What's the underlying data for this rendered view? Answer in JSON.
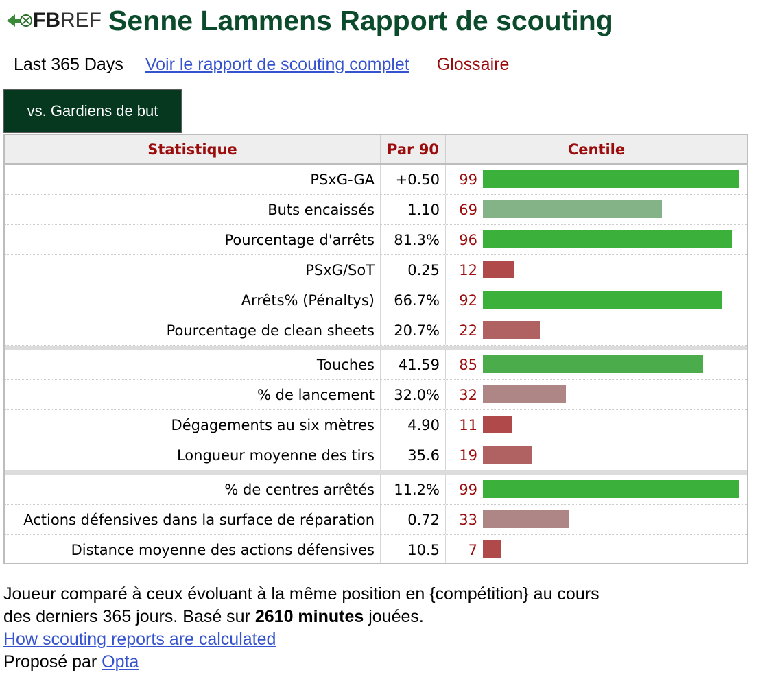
{
  "header": {
    "logo_fb": "FB",
    "logo_ref": "REF",
    "title": "Senne Lammens Rapport de scouting"
  },
  "subnav": {
    "period": "Last 365 Days",
    "full_report_link": "Voir le rapport de scouting complet",
    "glossary": "Glossaire"
  },
  "tab": {
    "label": "vs. Gardiens de but"
  },
  "table": {
    "columns": [
      "Statistique",
      "Par 90",
      "Centile"
    ],
    "groups": [
      [
        {
          "stat": "PSxG-GA",
          "per90": "+0.50",
          "percentile": 99
        },
        {
          "stat": "Buts encaissés",
          "per90": "1.10",
          "percentile": 69
        },
        {
          "stat": "Pourcentage d'arrêts",
          "per90": "81.3%",
          "percentile": 96
        },
        {
          "stat": "PSxG/SoT",
          "per90": "0.25",
          "percentile": 12
        },
        {
          "stat": "Arrêts% (Pénaltys)",
          "per90": "66.7%",
          "percentile": 92
        },
        {
          "stat": "Pourcentage de clean sheets",
          "per90": "20.7%",
          "percentile": 22
        }
      ],
      [
        {
          "stat": "Touches",
          "per90": "41.59",
          "percentile": 85
        },
        {
          "stat": "% de lancement",
          "per90": "32.0%",
          "percentile": 32
        },
        {
          "stat": "Dégagements au six mètres",
          "per90": "4.90",
          "percentile": 11
        },
        {
          "stat": "Longueur moyenne des tirs",
          "per90": "35.6",
          "percentile": 19
        }
      ],
      [
        {
          "stat": "% de centres arrêtés",
          "per90": "11.2%",
          "percentile": 99
        },
        {
          "stat": "Actions défensives dans la surface de réparation",
          "per90": "0.72",
          "percentile": 33
        },
        {
          "stat": "Distance moyenne des actions défensives",
          "per90": "10.5",
          "percentile": 7
        }
      ]
    ]
  },
  "footer": {
    "line1": "Joueur comparé à ceux évoluant à la même position en {compétition} au cours",
    "line2_before": "des derniers 365 jours. Basé sur ",
    "line2_bold": "2610 minutes",
    "line2_after": " jouées.",
    "how_link": "How scouting reports are calculated",
    "proposed_by": "Proposé par ",
    "opta_link": "Opta"
  },
  "colors": {
    "title_green": "#0b4a2a",
    "tab_bg": "#06371f",
    "header_red": "#9b0d0d",
    "link_blue": "#3553ce"
  }
}
